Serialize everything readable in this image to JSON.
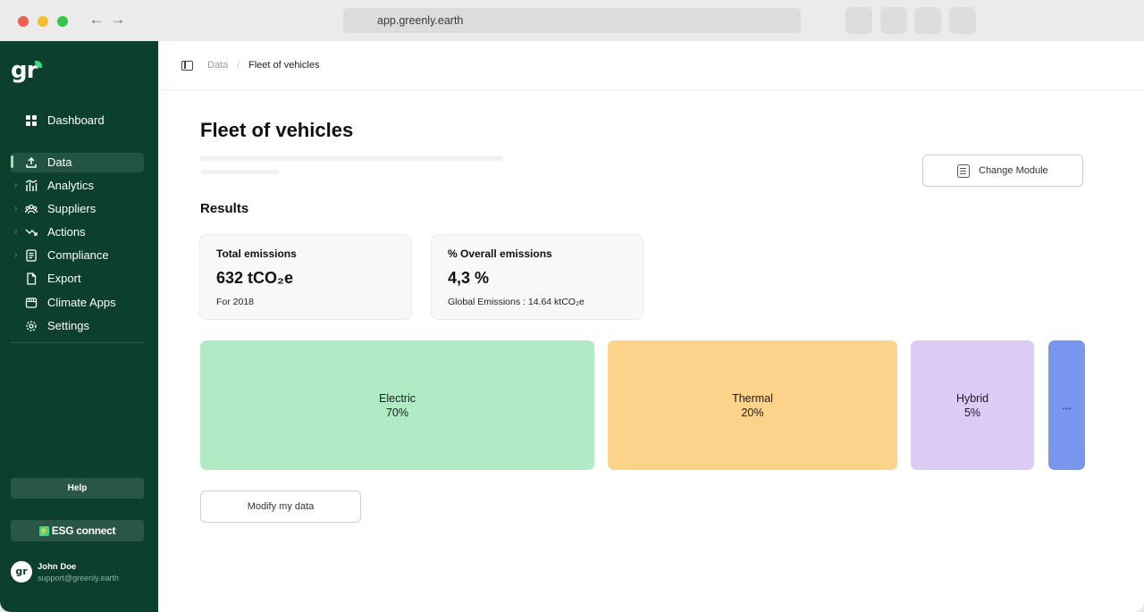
{
  "browser": {
    "url": "app.greenly.earth"
  },
  "sidebar": {
    "logo_text": "gr",
    "items": [
      {
        "label": "Dashboard",
        "icon": "grid-icon"
      },
      {
        "label": "Data",
        "icon": "upload-icon",
        "active": true
      },
      {
        "label": "Analytics",
        "icon": "bar-chart-icon"
      },
      {
        "label": "Suppliers",
        "icon": "people-icon"
      },
      {
        "label": "Actions",
        "icon": "trend-down-icon"
      },
      {
        "label": "Compliance",
        "icon": "checklist-icon"
      },
      {
        "label": "Export",
        "icon": "file-icon"
      },
      {
        "label": "Climate Apps",
        "icon": "store-icon"
      },
      {
        "label": "Settings",
        "icon": "gear-icon"
      }
    ],
    "help_label": "Help",
    "esg_label": "ESG connect",
    "user": {
      "avatar_text": "gr",
      "name": "John Doe",
      "email": "support@greenly.earth"
    }
  },
  "topbar": {
    "breadcrumb": [
      "Data",
      "Fleet of vehicles"
    ],
    "separator": "/"
  },
  "main": {
    "title": "Fleet of vehicles",
    "change_module_label": "Change Module",
    "results_heading": "Results",
    "kpis": [
      {
        "title": "Total emissions",
        "value": "632 tCO₂e",
        "sub": "For 2018"
      },
      {
        "title": "% Overall emissions",
        "value": "4,3 %",
        "sub": "Global Emissions : 14.64 ktCO₂e"
      }
    ],
    "breakdown": [
      {
        "label": "Electric",
        "pct": "70%",
        "color": "#b1ebc6"
      },
      {
        "label": "Thermal",
        "pct": "20%",
        "color": "#fdd28b"
      },
      {
        "label": "Hybrid",
        "pct": "5%",
        "color": "#dbcbf5"
      },
      {
        "label": "...",
        "pct": "",
        "color": "#7996ee"
      }
    ],
    "modify_label": "Modify my data"
  },
  "colors": {
    "sidebar_bg": "#0d3f2f",
    "accent_green": "#3fd68a"
  }
}
